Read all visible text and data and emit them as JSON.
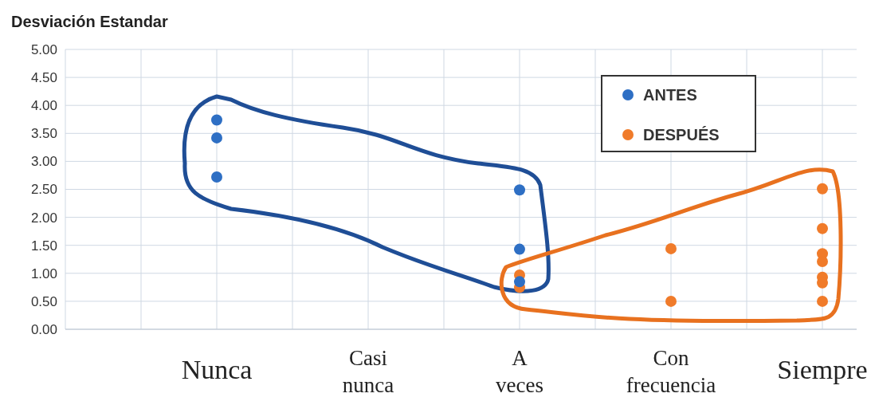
{
  "chart_data": {
    "type": "scatter",
    "title": "Desviación Estandar",
    "categories": [
      "Nunca",
      "Casi nunca",
      "A veces",
      "Con frecuencia",
      "Siempre"
    ],
    "series": [
      {
        "name": "ANTES",
        "color": "#2e6fc4",
        "x": [
          "Nunca",
          "Nunca",
          "Nunca",
          "A veces",
          "A veces",
          "A veces"
        ],
        "values": [
          3.74,
          3.42,
          2.72,
          2.49,
          1.43,
          0.85
        ]
      },
      {
        "name": "DESPUÉS",
        "color": "#f07b2a",
        "x": [
          "A veces",
          "A veces",
          "Con frecuencia",
          "Con frecuencia",
          "Siempre",
          "Siempre",
          "Siempre",
          "Siempre",
          "Siempre",
          "Siempre",
          "Siempre"
        ],
        "values": [
          0.97,
          0.75,
          1.44,
          0.5,
          2.51,
          1.8,
          1.35,
          1.21,
          0.93,
          0.83,
          0.5
        ]
      }
    ],
    "ylim": [
      0,
      5
    ],
    "yticks": [
      {
        "value": 0,
        "label": "0.00"
      },
      {
        "value": 0.5,
        "label": "0.50"
      },
      {
        "value": 1,
        "label": "1.00"
      },
      {
        "value": 1.5,
        "label": "1.50"
      },
      {
        "value": 2,
        "label": "2.00"
      },
      {
        "value": 2.5,
        "label": "2.50"
      },
      {
        "value": 3,
        "label": "3.00"
      },
      {
        "value": 3.5,
        "label": "3.50"
      },
      {
        "value": 4,
        "label": "4.00"
      },
      {
        "value": 4.5,
        "label": "4.50"
      },
      {
        "value": 5,
        "label": "5.00"
      }
    ],
    "grid": true,
    "legend": "top right",
    "marker": "circle"
  }
}
